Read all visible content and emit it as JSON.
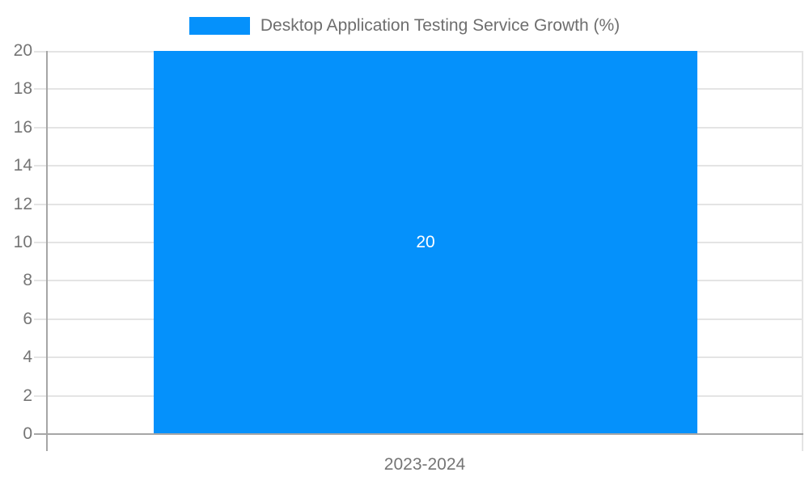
{
  "chart_data": {
    "type": "bar",
    "legend_position": "top",
    "grid": true,
    "categories": [
      "2023-2024"
    ],
    "series": [
      {
        "name": "Desktop Application Testing Service Growth (%)",
        "values": [
          20
        ],
        "color": "#0591fb"
      }
    ],
    "bar_labels": [
      "20"
    ],
    "ylim": [
      0,
      20
    ],
    "yticks": [
      0,
      2,
      4,
      6,
      8,
      10,
      12,
      14,
      16,
      18,
      20
    ],
    "xlabel": "",
    "ylabel": ""
  },
  "colors": {
    "bar": "#0591fb",
    "axis_line": "#a6a6a6",
    "gridline": "#e4e4e4",
    "tick_text": "#757575",
    "legend_text": "#6e6e6e",
    "bar_label_text": "#ffffff",
    "background": "#ffffff"
  }
}
